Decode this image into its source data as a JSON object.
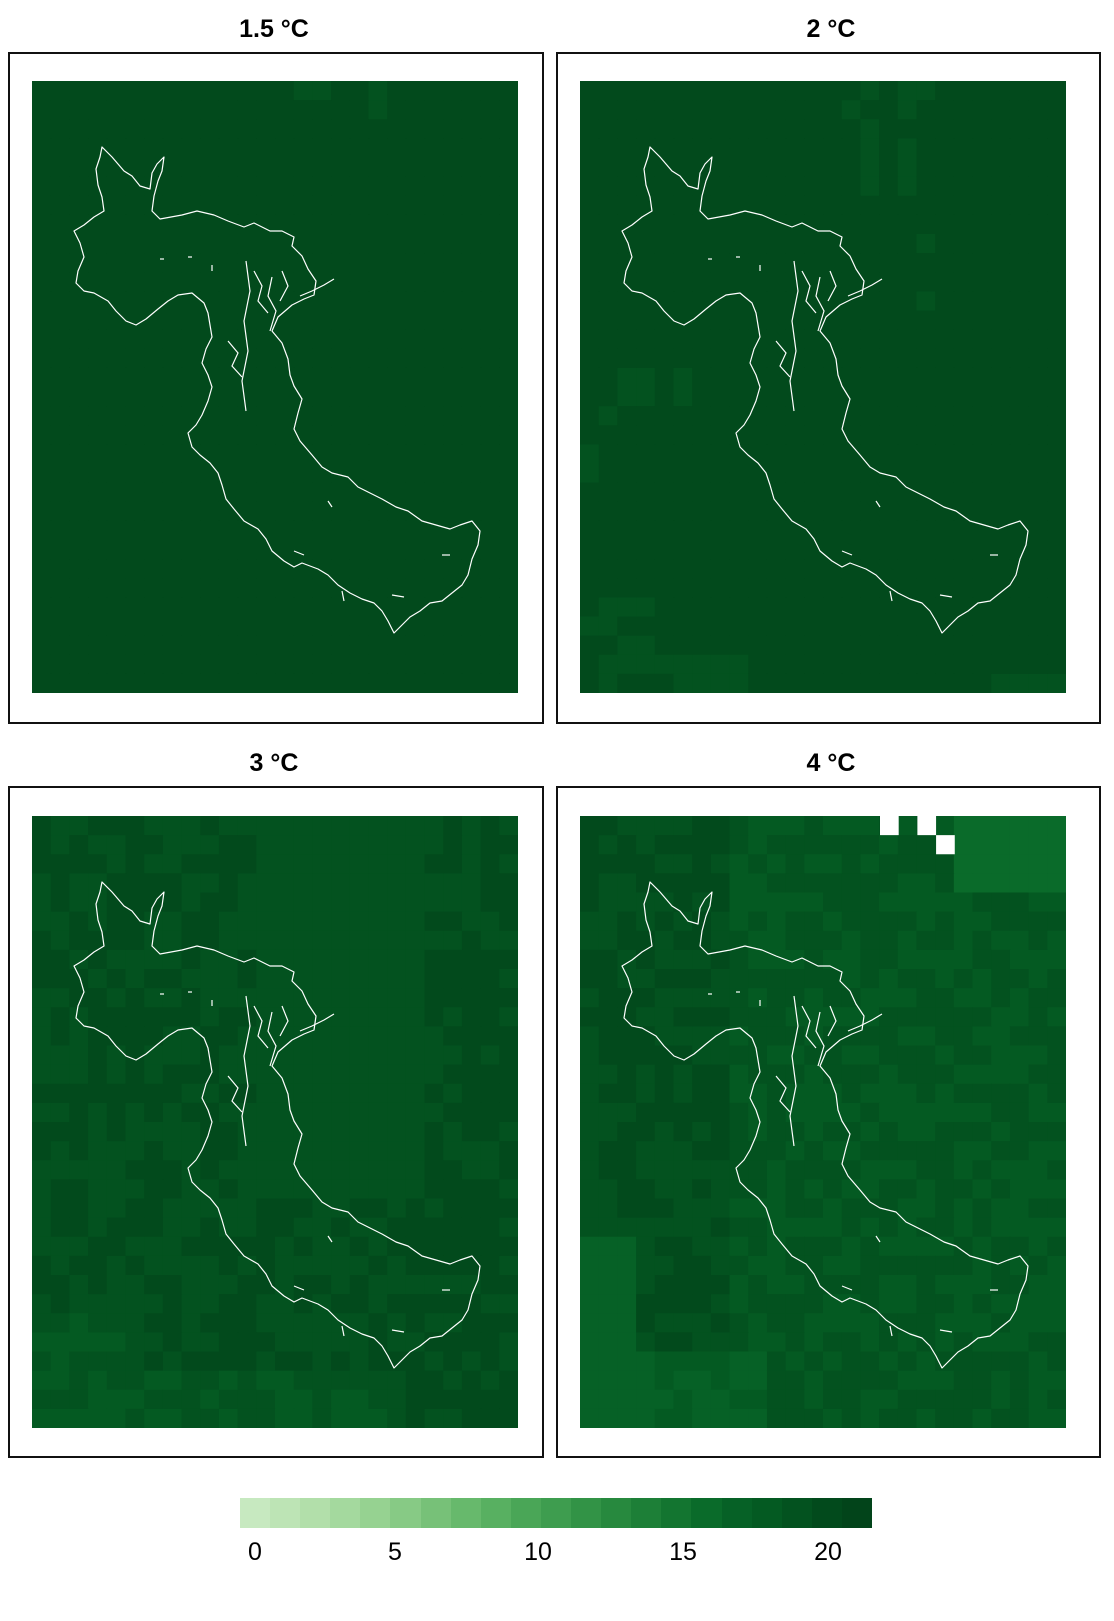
{
  "panels": [
    {
      "id": "p15",
      "title": "1.5 °C"
    },
    {
      "id": "p2",
      "title": "2 °C"
    },
    {
      "id": "p3",
      "title": "3 °C"
    },
    {
      "id": "p4",
      "title": "4 °C"
    }
  ],
  "legend": {
    "ticks": [
      "0",
      "5",
      "10",
      "15",
      "20"
    ],
    "colors": [
      "#c7e9c0",
      "#bde4b5",
      "#b2dfaa",
      "#a4d99e",
      "#96d291",
      "#87ca85",
      "#77c178",
      "#67b96c",
      "#58b061",
      "#4aa657",
      "#3e9d4f",
      "#329346",
      "#27893e",
      "#1d7f37",
      "#137530",
      "#0a6b2a",
      "#066126",
      "#045a22",
      "#03521f",
      "#024a1c",
      "#02441a"
    ]
  },
  "colors": {
    "outline": "#ffffff",
    "frame": "#111111",
    "missing": "#ffffff"
  }
}
